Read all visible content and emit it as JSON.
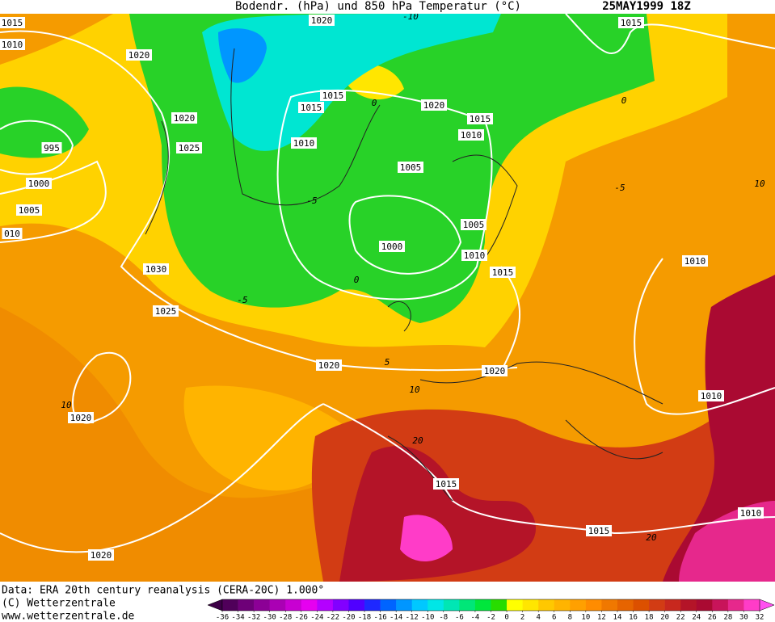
{
  "header": {
    "title": "Bodendr. (hPa) und 850 hPa Temperatur (°C)",
    "date": "25MAY1999 18Z"
  },
  "isobar_labels": [
    "1015",
    "1010",
    "1020",
    "1020",
    "1020",
    "1025",
    "995",
    "1000",
    "1005",
    "010",
    "1030",
    "1025",
    "1015",
    "1015",
    "1010",
    "1020",
    "1015",
    "1010",
    "1005",
    "1005",
    "1000",
    "1010",
    "1015",
    "1020",
    "1020",
    "1020",
    "1015",
    "1015",
    "1010",
    "1010",
    "1010",
    "1015",
    "1020"
  ],
  "temperature_labels": [
    -10,
    0,
    -5,
    0,
    -5,
    5,
    10,
    10,
    20,
    0,
    -5,
    10,
    20
  ],
  "footer": {
    "data_source": "Data: ERA 20th century reanalysis (CERA-20C) 1.000°",
    "copyright": "(C) Wetterzentrale",
    "url": "www.wetterzentrale.de"
  },
  "colorbar": {
    "ticks": [
      -36,
      -34,
      -32,
      -30,
      -28,
      -26,
      -24,
      -22,
      -20,
      -18,
      -16,
      -14,
      -12,
      -10,
      -8,
      -6,
      -4,
      -2,
      0,
      2,
      4,
      6,
      8,
      10,
      12,
      14,
      16,
      18,
      20,
      22,
      24,
      26,
      28,
      30,
      32
    ],
    "colors": [
      "#50005a",
      "#6e0078",
      "#8c0096",
      "#aa00b4",
      "#c800d2",
      "#e600f0",
      "#b400ff",
      "#8200ff",
      "#5000ff",
      "#1e28ff",
      "#0064ff",
      "#0096ff",
      "#00c8ff",
      "#00e6e6",
      "#00e6b4",
      "#00e678",
      "#00e63c",
      "#28dc00",
      "#ffff00",
      "#ffe600",
      "#ffc800",
      "#ffb400",
      "#ffa000",
      "#ff8c00",
      "#f07800",
      "#e66400",
      "#dc5000",
      "#d23c14",
      "#c8281e",
      "#b41428",
      "#aa0a32",
      "#c8145a",
      "#e6288c",
      "#ff3cc8"
    ],
    "low_color": "#3c0046",
    "high_color": "#ff50f0"
  }
}
